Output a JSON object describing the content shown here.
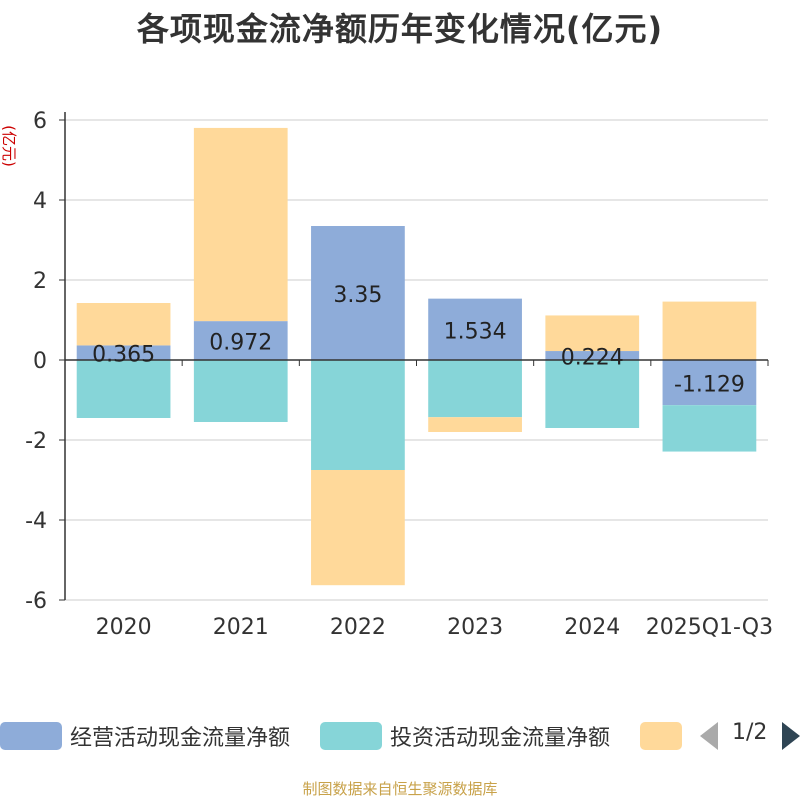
{
  "chart_data": {
    "type": "bar",
    "stacked": true,
    "title": "各项现金流净额历年变化情况(亿元)",
    "ylabel": "(亿元)",
    "xlabel": "",
    "ylim": [
      -6,
      6
    ],
    "yticks": [
      6,
      4,
      2,
      0,
      -2,
      -4,
      -6
    ],
    "categories": [
      "2020",
      "2021",
      "2022",
      "2023",
      "2024",
      "2025Q1-Q3"
    ],
    "series": [
      {
        "name": "经营活动现金流量净额",
        "color": "#8eacd9",
        "values": [
          0.365,
          0.972,
          3.35,
          1.534,
          0.224,
          -1.129
        ],
        "labels": [
          "0.365",
          "0.972",
          "3.35",
          "1.534",
          "0.224",
          "-1.129"
        ]
      },
      {
        "name": "投资活动现金流量净额",
        "color": "#86d5d8",
        "values": [
          -1.45,
          -1.55,
          -2.75,
          -1.43,
          -1.7,
          -1.16
        ]
      },
      {
        "name": "",
        "color": "#ffd99a",
        "values": [
          1.06,
          4.83,
          -2.88,
          -0.37,
          0.89,
          1.46
        ]
      }
    ],
    "legend": {
      "position": "bottom",
      "page_text": "1/2"
    }
  },
  "source_note": "制图数据来自恒生聚源数据库"
}
